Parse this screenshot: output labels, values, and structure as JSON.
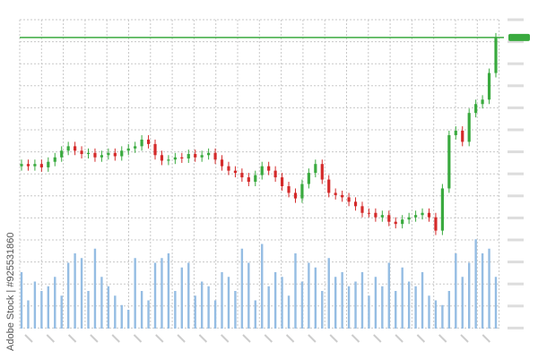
{
  "watermark": "Adobe Stock | #925531860",
  "chart_data": {
    "type": "candlestick",
    "open": [
      34,
      35,
      34,
      35,
      33.5,
      36,
      38,
      41,
      43,
      41,
      39.5,
      40,
      38,
      39,
      40,
      38.5,
      41,
      42,
      43,
      46,
      44,
      39,
      36.5,
      37,
      38,
      37.5,
      39.5,
      38,
      39,
      40,
      37,
      34,
      32,
      31,
      29,
      27,
      30,
      34,
      32,
      29,
      25,
      22,
      19.5,
      26,
      31,
      35,
      28,
      22,
      21,
      20,
      18,
      16,
      13,
      13,
      11,
      12,
      9,
      8,
      10,
      11,
      12,
      13,
      11,
      5,
      24,
      48,
      50,
      45,
      58,
      62,
      64,
      76
    ],
    "close": [
      35,
      34,
      35,
      33.5,
      36,
      38,
      41,
      43,
      41,
      39.5,
      40,
      38,
      39,
      40,
      38.5,
      41,
      42,
      43,
      46,
      44,
      39,
      36.5,
      37,
      38,
      37.5,
      39.5,
      38,
      39,
      40,
      37,
      34,
      32,
      31,
      29,
      27,
      30,
      34,
      32,
      29,
      25,
      22,
      19.5,
      26,
      31,
      35,
      28,
      22,
      21,
      20,
      18,
      16,
      13,
      13,
      11,
      12,
      9,
      8,
      10,
      11,
      12,
      13,
      11,
      5,
      24,
      48,
      50,
      45,
      58,
      62,
      64,
      76,
      92
    ],
    "high": [
      37,
      37,
      37,
      37,
      38,
      40,
      43,
      45,
      45,
      43,
      42,
      42,
      41,
      42,
      42,
      43,
      44,
      45,
      48,
      48,
      46,
      41,
      39,
      40,
      40,
      41.5,
      41.5,
      41,
      42,
      42,
      39,
      36,
      34,
      33,
      31,
      32,
      36,
      36,
      34,
      31,
      27,
      24,
      28,
      33,
      37,
      37,
      30,
      24,
      23,
      22,
      20,
      18,
      15,
      15,
      14,
      14,
      11,
      12,
      13,
      14,
      15,
      15,
      13,
      26,
      50,
      52,
      52,
      60,
      64,
      66,
      78,
      94
    ],
    "low": [
      32,
      32,
      32,
      31.5,
      31.5,
      34,
      36,
      39,
      39,
      37.5,
      37.5,
      36,
      36,
      37,
      36.5,
      36.5,
      39,
      40,
      41,
      42,
      37,
      34.5,
      34.5,
      35,
      35.5,
      35.5,
      36,
      36,
      37,
      35,
      32,
      30,
      29,
      27,
      25,
      25,
      28,
      30,
      27,
      23,
      20,
      17.5,
      17.5,
      24,
      29,
      26,
      20,
      19,
      18,
      16,
      14,
      11,
      11,
      9,
      9,
      7,
      6,
      6,
      8,
      9,
      10,
      9,
      3,
      3,
      22,
      46,
      43,
      43,
      56,
      60,
      62,
      74
    ],
    "volume": [
      60,
      30,
      50,
      40,
      45,
      55,
      35,
      70,
      80,
      75,
      40,
      85,
      55,
      45,
      35,
      25,
      20,
      75,
      40,
      30,
      70,
      75,
      80,
      40,
      65,
      70,
      35,
      50,
      45,
      30,
      60,
      55,
      40,
      85,
      70,
      30,
      90,
      45,
      60,
      55,
      35,
      80,
      50,
      70,
      65,
      40,
      75,
      55,
      60,
      45,
      50,
      60,
      35,
      55,
      45,
      70,
      40,
      65,
      50,
      45,
      60,
      35,
      30,
      25,
      40,
      80,
      55,
      70,
      95,
      80,
      85,
      55
    ],
    "ylim": [
      0,
      100
    ],
    "y2lim": [
      0,
      100
    ],
    "level_line": 92,
    "up_color": "#3aaa3f",
    "down_color": "#d42a2a",
    "volume_color": "#95bde3",
    "grid": true
  }
}
